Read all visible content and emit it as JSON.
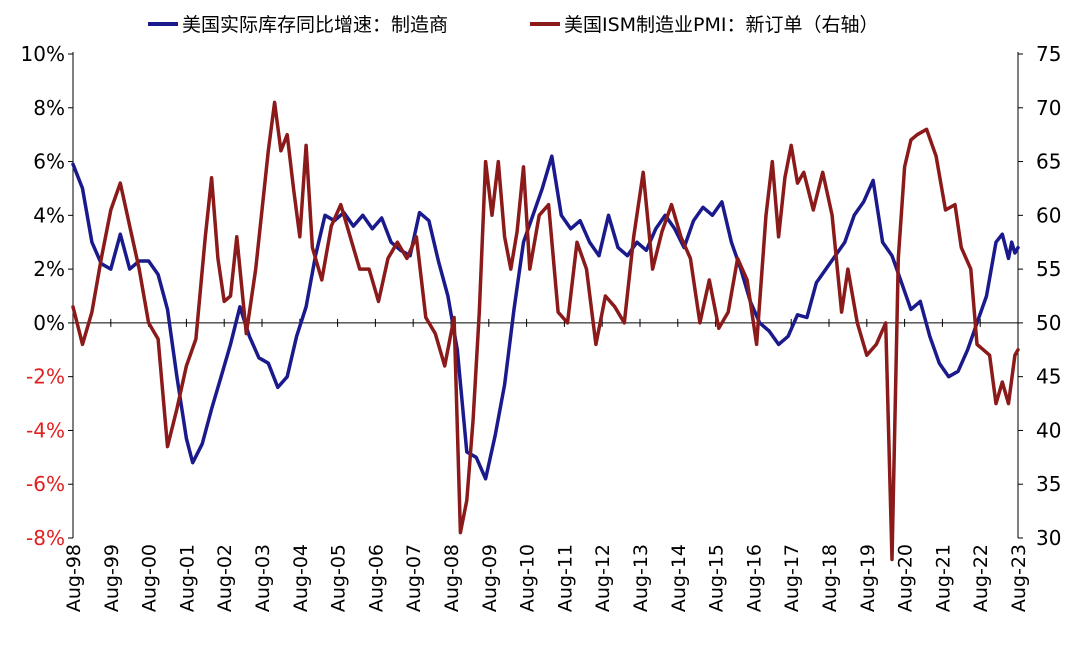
{
  "chart_data": {
    "type": "line",
    "legend": [
      {
        "label": "美国实际库存同比增速：制造商",
        "color": "#1a1a8c"
      },
      {
        "label": "美国ISM制造业PMI：新订单（右轴）",
        "color": "#8b1a1a"
      }
    ],
    "legend_position": "top",
    "grid": false,
    "y_left": {
      "range": [
        -8,
        10
      ],
      "ticks": [
        "10%",
        "8%",
        "6%",
        "4%",
        "2%",
        "0%",
        "-2%",
        "-4%",
        "-6%",
        "-8%"
      ],
      "tick_values": [
        10,
        8,
        6,
        4,
        2,
        0,
        -2,
        -4,
        -6,
        -8
      ],
      "negative_tick_color": "#e02020"
    },
    "y_right": {
      "range": [
        30,
        75
      ],
      "ticks": [
        "75",
        "70",
        "65",
        "60",
        "55",
        "50",
        "45",
        "40",
        "35",
        "30"
      ],
      "tick_values": [
        75,
        70,
        65,
        60,
        55,
        50,
        45,
        40,
        35,
        30
      ]
    },
    "x": {
      "start": "1998-08",
      "end": "2023-08",
      "ticks": [
        "Aug-98",
        "Aug-99",
        "Aug-00",
        "Aug-01",
        "Aug-02",
        "Aug-03",
        "Aug-04",
        "Aug-05",
        "Aug-06",
        "Aug-07",
        "Aug-08",
        "Aug-09",
        "Aug-10",
        "Aug-11",
        "Aug-12",
        "Aug-13",
        "Aug-14",
        "Aug-15",
        "Aug-16",
        "Aug-17",
        "Aug-18",
        "Aug-19",
        "Aug-20",
        "Aug-21",
        "Aug-22",
        "Aug-23"
      ]
    },
    "series": [
      {
        "name": "美国实际库存同比增速：制造商",
        "axis": "left",
        "color": "#1a1a8c",
        "points": [
          [
            "1998-08",
            5.9
          ],
          [
            "1998-11",
            5.0
          ],
          [
            "1999-02",
            3.0
          ],
          [
            "1999-05",
            2.2
          ],
          [
            "1999-08",
            2.0
          ],
          [
            "1999-11",
            3.3
          ],
          [
            "2000-02",
            2.0
          ],
          [
            "2000-05",
            2.3
          ],
          [
            "2000-08",
            2.3
          ],
          [
            "2000-11",
            1.8
          ],
          [
            "2001-02",
            0.5
          ],
          [
            "2001-05",
            -2.0
          ],
          [
            "2001-08",
            -4.3
          ],
          [
            "2001-10",
            -5.2
          ],
          [
            "2002-01",
            -4.5
          ],
          [
            "2002-04",
            -3.2
          ],
          [
            "2002-07",
            -2.0
          ],
          [
            "2002-10",
            -0.8
          ],
          [
            "2003-01",
            0.6
          ],
          [
            "2003-04",
            -0.5
          ],
          [
            "2003-07",
            -1.3
          ],
          [
            "2003-10",
            -1.5
          ],
          [
            "2004-01",
            -2.4
          ],
          [
            "2004-04",
            -2.0
          ],
          [
            "2004-07",
            -0.5
          ],
          [
            "2004-10",
            0.6
          ],
          [
            "2005-01",
            2.5
          ],
          [
            "2005-04",
            4.0
          ],
          [
            "2005-07",
            3.8
          ],
          [
            "2005-10",
            4.1
          ],
          [
            "2006-01",
            3.6
          ],
          [
            "2006-04",
            4.0
          ],
          [
            "2006-07",
            3.5
          ],
          [
            "2006-10",
            3.9
          ],
          [
            "2007-01",
            3.0
          ],
          [
            "2007-04",
            2.7
          ],
          [
            "2007-07",
            2.5
          ],
          [
            "2007-10",
            4.1
          ],
          [
            "2008-01",
            3.8
          ],
          [
            "2008-04",
            2.3
          ],
          [
            "2008-07",
            1.0
          ],
          [
            "2008-10",
            -1.0
          ],
          [
            "2009-01",
            -4.8
          ],
          [
            "2009-04",
            -5.0
          ],
          [
            "2009-07",
            -5.8
          ],
          [
            "2009-10",
            -4.2
          ],
          [
            "2010-01",
            -2.3
          ],
          [
            "2010-04",
            0.5
          ],
          [
            "2010-07",
            3.0
          ],
          [
            "2010-10",
            4.0
          ],
          [
            "2011-01",
            5.0
          ],
          [
            "2011-04",
            6.2
          ],
          [
            "2011-07",
            4.0
          ],
          [
            "2011-10",
            3.5
          ],
          [
            "2012-01",
            3.8
          ],
          [
            "2012-04",
            3.0
          ],
          [
            "2012-07",
            2.5
          ],
          [
            "2012-10",
            4.0
          ],
          [
            "2013-01",
            2.8
          ],
          [
            "2013-04",
            2.5
          ],
          [
            "2013-07",
            3.0
          ],
          [
            "2013-10",
            2.7
          ],
          [
            "2014-01",
            3.5
          ],
          [
            "2014-04",
            4.0
          ],
          [
            "2014-07",
            3.5
          ],
          [
            "2014-10",
            2.8
          ],
          [
            "2015-01",
            3.8
          ],
          [
            "2015-04",
            4.3
          ],
          [
            "2015-07",
            4.0
          ],
          [
            "2015-10",
            4.5
          ],
          [
            "2016-01",
            3.0
          ],
          [
            "2016-04",
            2.0
          ],
          [
            "2016-07",
            0.8
          ],
          [
            "2016-10",
            0.0
          ],
          [
            "2017-01",
            -0.3
          ],
          [
            "2017-04",
            -0.8
          ],
          [
            "2017-07",
            -0.5
          ],
          [
            "2017-10",
            0.3
          ],
          [
            "2018-01",
            0.2
          ],
          [
            "2018-04",
            1.5
          ],
          [
            "2018-07",
            2.0
          ],
          [
            "2018-10",
            2.5
          ],
          [
            "2019-01",
            3.0
          ],
          [
            "2019-04",
            4.0
          ],
          [
            "2019-07",
            4.5
          ],
          [
            "2019-10",
            5.3
          ],
          [
            "2020-01",
            3.0
          ],
          [
            "2020-04",
            2.5
          ],
          [
            "2020-07",
            1.5
          ],
          [
            "2020-10",
            0.5
          ],
          [
            "2021-01",
            0.8
          ],
          [
            "2021-04",
            -0.5
          ],
          [
            "2021-07",
            -1.5
          ],
          [
            "2021-10",
            -2.0
          ],
          [
            "2022-01",
            -1.8
          ],
          [
            "2022-04",
            -1.0
          ],
          [
            "2022-07",
            0.0
          ],
          [
            "2022-10",
            1.0
          ],
          [
            "2023-01",
            3.0
          ],
          [
            "2023-03",
            3.3
          ],
          [
            "2023-05",
            2.4
          ],
          [
            "2023-06",
            3.0
          ],
          [
            "2023-07",
            2.6
          ],
          [
            "2023-08",
            2.8
          ]
        ]
      },
      {
        "name": "美国ISM制造业PMI：新订单（右轴）",
        "axis": "right",
        "color": "#8b1a1a",
        "points": [
          [
            "1998-08",
            51.5
          ],
          [
            "1998-11",
            48.0
          ],
          [
            "1999-02",
            51.0
          ],
          [
            "1999-05",
            56.0
          ],
          [
            "1999-08",
            60.5
          ],
          [
            "1999-11",
            63.0
          ],
          [
            "2000-02",
            59.0
          ],
          [
            "2000-05",
            55.0
          ],
          [
            "2000-08",
            50.0
          ],
          [
            "2000-11",
            48.5
          ],
          [
            "2001-02",
            38.5
          ],
          [
            "2001-05",
            42.0
          ],
          [
            "2001-08",
            46.0
          ],
          [
            "2001-11",
            48.5
          ],
          [
            "2002-02",
            58.0
          ],
          [
            "2002-04",
            63.5
          ],
          [
            "2002-06",
            56.0
          ],
          [
            "2002-08",
            52.0
          ],
          [
            "2002-10",
            52.5
          ],
          [
            "2002-12",
            58.0
          ],
          [
            "2003-03",
            49.0
          ],
          [
            "2003-06",
            55.0
          ],
          [
            "2003-08",
            60.5
          ],
          [
            "2003-10",
            66.0
          ],
          [
            "2003-12",
            70.5
          ],
          [
            "2004-02",
            66.0
          ],
          [
            "2004-04",
            67.5
          ],
          [
            "2004-06",
            62.5
          ],
          [
            "2004-08",
            58.0
          ],
          [
            "2004-10",
            66.5
          ],
          [
            "2004-12",
            57.0
          ],
          [
            "2005-03",
            54.0
          ],
          [
            "2005-06",
            59.0
          ],
          [
            "2005-09",
            61.0
          ],
          [
            "2005-12",
            58.0
          ],
          [
            "2006-03",
            55.0
          ],
          [
            "2006-06",
            55.0
          ],
          [
            "2006-09",
            52.0
          ],
          [
            "2006-12",
            56.0
          ],
          [
            "2007-03",
            57.5
          ],
          [
            "2007-06",
            56.0
          ],
          [
            "2007-09",
            58.0
          ],
          [
            "2007-12",
            50.5
          ],
          [
            "2008-03",
            49.0
          ],
          [
            "2008-06",
            46.0
          ],
          [
            "2008-09",
            50.5
          ],
          [
            "2008-11",
            30.5
          ],
          [
            "2009-01",
            33.5
          ],
          [
            "2009-03",
            41.0
          ],
          [
            "2009-05",
            51.0
          ],
          [
            "2009-07",
            65.0
          ],
          [
            "2009-09",
            60.0
          ],
          [
            "2009-11",
            65.0
          ],
          [
            "2010-01",
            58.0
          ],
          [
            "2010-03",
            55.0
          ],
          [
            "2010-05",
            58.5
          ],
          [
            "2010-07",
            64.5
          ],
          [
            "2010-09",
            55.0
          ],
          [
            "2010-12",
            60.0
          ],
          [
            "2011-03",
            61.0
          ],
          [
            "2011-06",
            51.0
          ],
          [
            "2011-09",
            50.0
          ],
          [
            "2011-12",
            57.5
          ],
          [
            "2012-03",
            55.0
          ],
          [
            "2012-06",
            48.0
          ],
          [
            "2012-09",
            52.5
          ],
          [
            "2012-12",
            51.5
          ],
          [
            "2013-03",
            50.0
          ],
          [
            "2013-06",
            58.0
          ],
          [
            "2013-09",
            64.0
          ],
          [
            "2013-12",
            55.0
          ],
          [
            "2014-03",
            58.5
          ],
          [
            "2014-06",
            61.0
          ],
          [
            "2014-09",
            58.0
          ],
          [
            "2014-12",
            56.0
          ],
          [
            "2015-03",
            50.0
          ],
          [
            "2015-06",
            54.0
          ],
          [
            "2015-09",
            49.5
          ],
          [
            "2015-12",
            51.0
          ],
          [
            "2016-03",
            56.0
          ],
          [
            "2016-06",
            54.0
          ],
          [
            "2016-09",
            48.0
          ],
          [
            "2016-12",
            60.0
          ],
          [
            "2017-02",
            65.0
          ],
          [
            "2017-04",
            58.0
          ],
          [
            "2017-06",
            63.5
          ],
          [
            "2017-08",
            66.5
          ],
          [
            "2017-10",
            63.0
          ],
          [
            "2017-12",
            64.0
          ],
          [
            "2018-03",
            60.5
          ],
          [
            "2018-06",
            64.0
          ],
          [
            "2018-09",
            60.0
          ],
          [
            "2018-12",
            51.0
          ],
          [
            "2019-02",
            55.0
          ],
          [
            "2019-05",
            50.0
          ],
          [
            "2019-08",
            47.0
          ],
          [
            "2019-11",
            48.0
          ],
          [
            "2020-02",
            50.0
          ],
          [
            "2020-04",
            28.0
          ],
          [
            "2020-06",
            56.0
          ],
          [
            "2020-08",
            64.5
          ],
          [
            "2020-10",
            67.0
          ],
          [
            "2020-12",
            67.5
          ],
          [
            "2021-03",
            68.0
          ],
          [
            "2021-06",
            65.5
          ],
          [
            "2021-09",
            60.5
          ],
          [
            "2021-12",
            61.0
          ],
          [
            "2022-02",
            57.0
          ],
          [
            "2022-05",
            55.0
          ],
          [
            "2022-07",
            48.0
          ],
          [
            "2022-09",
            47.5
          ],
          [
            "2022-11",
            47.0
          ],
          [
            "2023-01",
            42.5
          ],
          [
            "2023-03",
            44.5
          ],
          [
            "2023-05",
            42.5
          ],
          [
            "2023-07",
            47.0
          ],
          [
            "2023-08",
            47.5
          ]
        ]
      }
    ]
  }
}
